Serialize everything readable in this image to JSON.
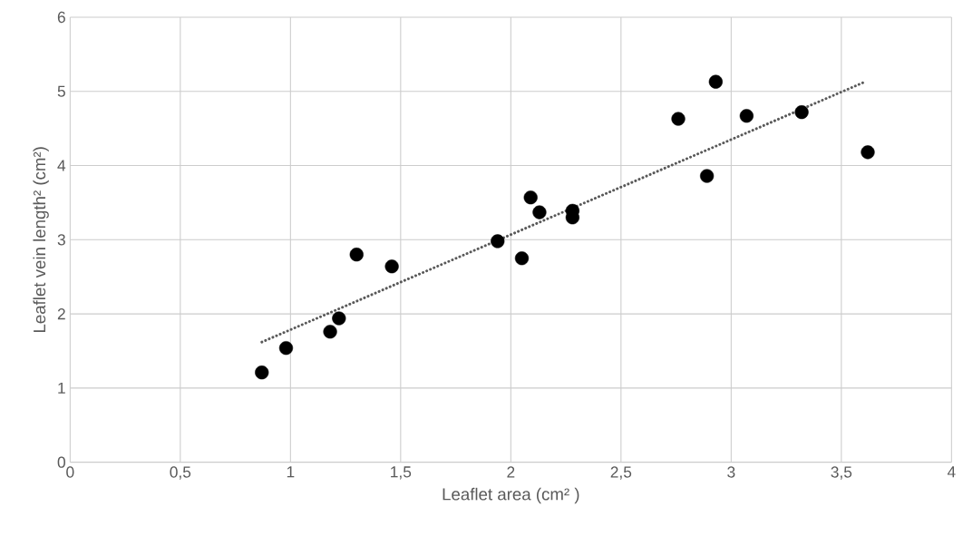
{
  "chart_data": {
    "type": "scatter",
    "xlabel": "Leaflet area (cm² )",
    "ylabel": "Leaflet vein length² (cm²)",
    "xlim": [
      0,
      4
    ],
    "ylim": [
      0,
      6
    ],
    "xticks": [
      0,
      {
        "value": 0.5,
        "label": "0,5"
      },
      1,
      {
        "value": 1.5,
        "label": "1,5"
      },
      2,
      {
        "value": 2.5,
        "label": "2,5"
      },
      3,
      {
        "value": 3.5,
        "label": "3,5"
      },
      4
    ],
    "yticks": [
      0,
      1,
      2,
      3,
      4,
      5,
      6
    ],
    "grid": true,
    "series": [
      {
        "color": "#000000",
        "marker": "circle",
        "x": [
          0.87,
          0.98,
          1.18,
          1.22,
          1.3,
          1.46,
          1.94,
          2.05,
          2.09,
          2.13,
          2.28,
          2.28,
          2.76,
          2.89,
          2.93,
          3.07,
          3.32,
          3.62
        ],
        "values": [
          1.21,
          1.54,
          1.76,
          1.94,
          2.8,
          2.64,
          2.98,
          2.75,
          3.57,
          3.37,
          3.39,
          3.3,
          4.63,
          3.86,
          5.13,
          4.67,
          4.72,
          4.18
        ]
      },
      {
        "type": "line",
        "color": "#595959",
        "line_style": "dotted",
        "marker": "none",
        "x": [
          0.87,
          3.6
        ],
        "values": [
          1.62,
          5.12
        ]
      }
    ]
  }
}
